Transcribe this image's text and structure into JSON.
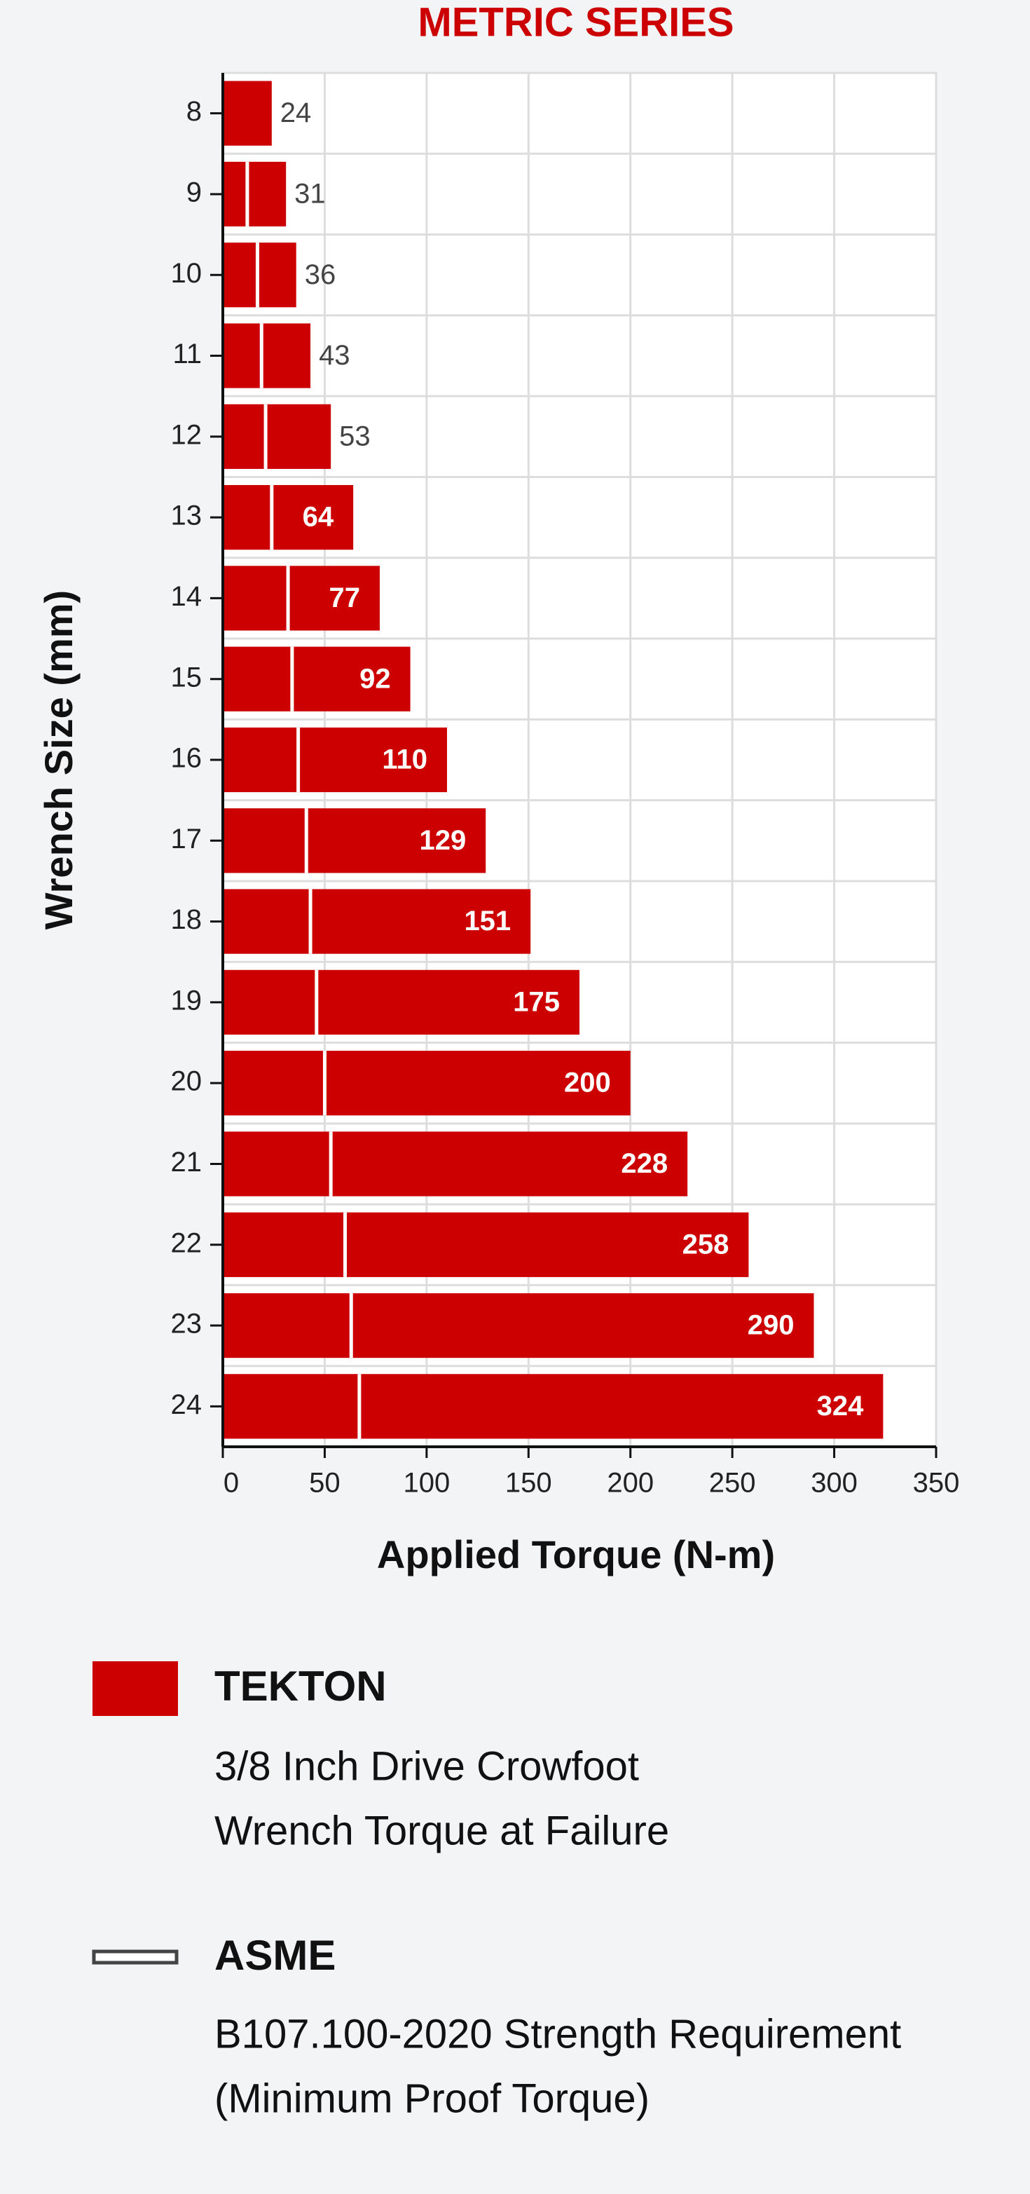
{
  "chart_data": {
    "type": "bar",
    "orientation": "horizontal",
    "title": "METRIC SERIES",
    "x_label": "Applied Torque (N-m)",
    "y_label": "Wrench Size (mm)",
    "categories": [
      "8",
      "9",
      "10",
      "11",
      "12",
      "13",
      "14",
      "15",
      "16",
      "17",
      "18",
      "19",
      "20",
      "21",
      "22",
      "23",
      "24"
    ],
    "series": [
      {
        "name": "TEKTON",
        "color": "#cc0000",
        "description": [
          "3/8 Inch Drive Crowfoot",
          "Wrench Torque at Failure"
        ],
        "values": [
          24,
          31,
          36,
          43,
          53,
          64,
          77,
          92,
          110,
          129,
          151,
          175,
          200,
          228,
          258,
          290,
          324
        ]
      },
      {
        "name": "ASME",
        "color": "#ffffff",
        "description": [
          "B107.100-2020 Strength Requirement",
          "(Minimum Proof Torque)"
        ],
        "values": [
          null,
          12,
          17,
          19,
          21,
          24,
          32,
          34,
          37,
          41,
          43,
          46,
          50,
          53,
          60,
          63,
          67
        ]
      }
    ],
    "xlim": [
      0,
      350
    ],
    "xticks": [
      0,
      50,
      100,
      150,
      200,
      250,
      300,
      350
    ],
    "grid": true
  }
}
